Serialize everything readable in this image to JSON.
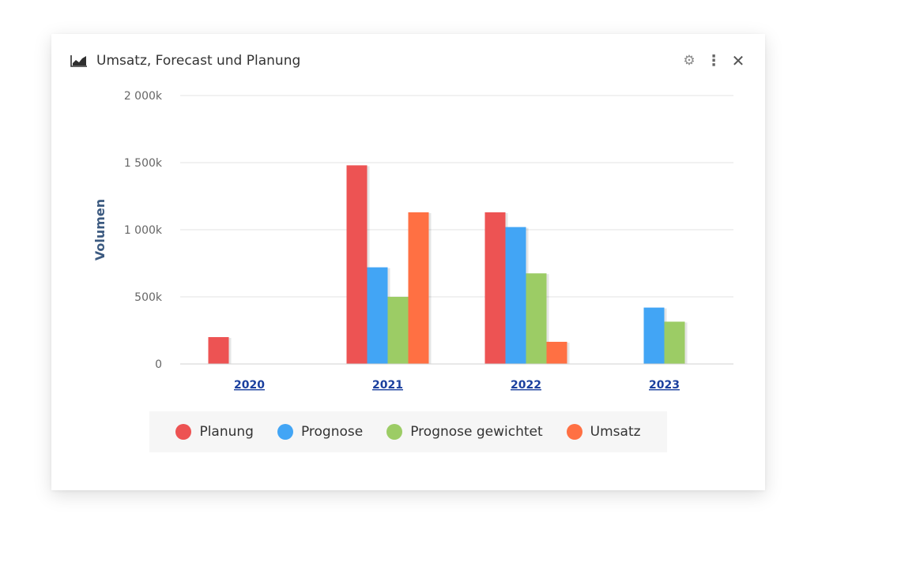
{
  "widget": {
    "title": "Umsatz, Forecast und Planung",
    "icons": {
      "chart": "area-chart-icon",
      "settings": "gear-icon",
      "menu": "kebab-icon",
      "close": "close-icon"
    }
  },
  "chart_data": {
    "type": "bar",
    "ylabel": "Volumen",
    "ylim": [
      0,
      2000000
    ],
    "yticks": [
      {
        "value": 0,
        "label": "0"
      },
      {
        "value": 500000,
        "label": "500k"
      },
      {
        "value": 1000000,
        "label": "1 000k"
      },
      {
        "value": 1500000,
        "label": "1 500k"
      },
      {
        "value": 2000000,
        "label": "2 000k"
      }
    ],
    "categories": [
      "2020",
      "2021",
      "2022",
      "2023"
    ],
    "grid": true,
    "legend_position": "bottom",
    "series": [
      {
        "name": "Planung",
        "color": "#ed5353",
        "values": [
          200000,
          1480000,
          1130000,
          null
        ]
      },
      {
        "name": "Prognose",
        "color": "#42a5f5",
        "values": [
          null,
          720000,
          1020000,
          420000
        ]
      },
      {
        "name": "Prognose gewichtet",
        "color": "#9ccc65",
        "values": [
          null,
          500000,
          675000,
          315000
        ]
      },
      {
        "name": "Umsatz",
        "color": "#ff7043",
        "values": [
          null,
          1130000,
          165000,
          null
        ]
      }
    ]
  }
}
